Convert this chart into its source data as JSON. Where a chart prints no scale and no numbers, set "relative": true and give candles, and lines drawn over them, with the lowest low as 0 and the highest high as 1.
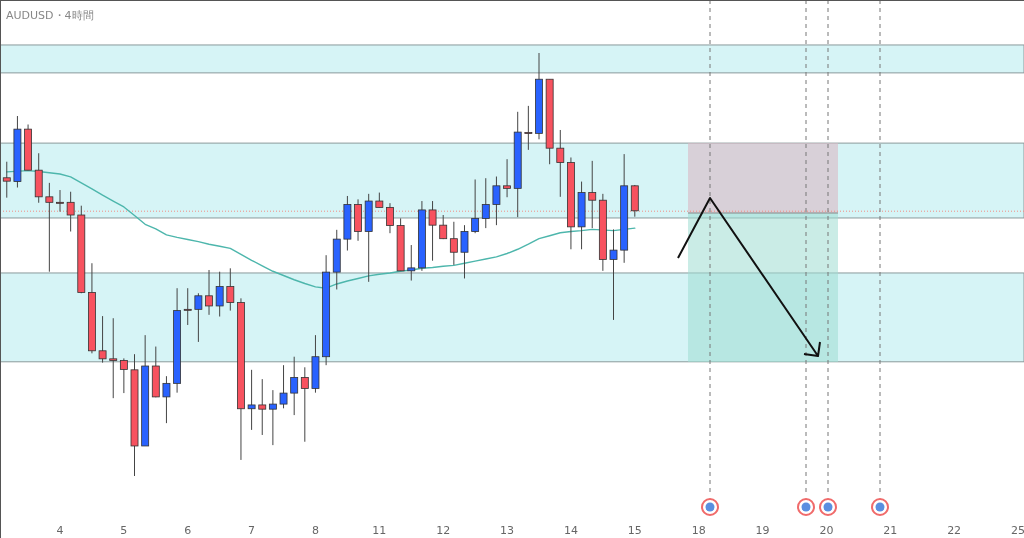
{
  "chart_data": {
    "type": "candlestick",
    "title": "AUDUSD・4時間",
    "relative": true,
    "categories": [
      null,
      null,
      null,
      null,
      null,
      "4",
      null,
      null,
      null,
      null,
      null,
      "5",
      null,
      null,
      null,
      null,
      null,
      "6",
      null,
      null,
      null,
      null,
      null,
      "7",
      null,
      null,
      null,
      null,
      null,
      "8",
      null,
      null,
      null,
      null,
      null,
      "11",
      null,
      null,
      null,
      null,
      null,
      "12",
      null,
      null,
      null,
      null,
      null,
      "13",
      null,
      null,
      null,
      null,
      null,
      "14",
      null,
      null,
      null,
      null,
      null,
      "15",
      null,
      null,
      null,
      null,
      null,
      "18",
      null,
      null,
      null,
      null,
      null,
      "19",
      null,
      null,
      null,
      null,
      null,
      "20",
      null,
      null,
      null,
      null,
      null,
      "21",
      null,
      null,
      null,
      null,
      null,
      "22",
      null,
      null,
      null,
      null,
      null,
      "25"
    ],
    "ohlc": [
      [
        0.705,
        0.743,
        0.658,
        0.697
      ],
      [
        0.696,
        0.851,
        0.682,
        0.82
      ],
      [
        0.82,
        0.831,
        0.723,
        0.723
      ],
      [
        0.723,
        0.763,
        0.646,
        0.66
      ],
      [
        0.66,
        0.693,
        0.483,
        0.647
      ],
      [
        0.647,
        0.676,
        0.625,
        0.646
      ],
      [
        0.647,
        0.672,
        0.578,
        0.617
      ],
      [
        0.617,
        0.639,
        0.432,
        0.434
      ],
      [
        0.434,
        0.503,
        0.29,
        0.296
      ],
      [
        0.296,
        0.378,
        0.268,
        0.277
      ],
      [
        0.277,
        0.373,
        0.184,
        0.273
      ],
      [
        0.273,
        0.278,
        0.196,
        0.252
      ],
      [
        0.251,
        0.288,
        0.0,
        0.071
      ],
      [
        0.071,
        0.333,
        0.071,
        0.26
      ],
      [
        0.26,
        0.306,
        0.186,
        0.187
      ],
      [
        0.187,
        0.236,
        0.125,
        0.219
      ],
      [
        0.219,
        0.444,
        0.197,
        0.391
      ],
      [
        0.394,
        0.444,
        0.357,
        0.393
      ],
      [
        0.394,
        0.432,
        0.317,
        0.426
      ],
      [
        0.426,
        0.487,
        0.381,
        0.402
      ],
      [
        0.402,
        0.483,
        0.377,
        0.448
      ],
      [
        0.448,
        0.491,
        0.391,
        0.41
      ],
      [
        0.41,
        0.42,
        0.038,
        0.159
      ],
      [
        0.159,
        0.251,
        0.109,
        0.168
      ],
      [
        0.168,
        0.229,
        0.097,
        0.158
      ],
      [
        0.158,
        0.203,
        0.073,
        0.17
      ],
      [
        0.17,
        0.262,
        0.16,
        0.196
      ],
      [
        0.196,
        0.282,
        0.144,
        0.233
      ],
      [
        0.233,
        0.257,
        0.081,
        0.207
      ],
      [
        0.207,
        0.333,
        0.197,
        0.282
      ],
      [
        0.282,
        0.522,
        0.262,
        0.482
      ],
      [
        0.482,
        0.582,
        0.441,
        0.56
      ],
      [
        0.56,
        0.662,
        0.533,
        0.642
      ],
      [
        0.642,
        0.654,
        0.556,
        0.578
      ],
      [
        0.578,
        0.667,
        0.459,
        0.65
      ],
      [
        0.65,
        0.67,
        0.635,
        0.635
      ],
      [
        0.635,
        0.645,
        0.574,
        0.592
      ],
      [
        0.592,
        0.609,
        0.485,
        0.485
      ],
      [
        0.485,
        0.546,
        0.462,
        0.492
      ],
      [
        0.492,
        0.65,
        0.485,
        0.629
      ],
      [
        0.629,
        0.65,
        0.509,
        0.593
      ],
      [
        0.593,
        0.617,
        0.56,
        0.561
      ],
      [
        0.561,
        0.601,
        0.499,
        0.529
      ],
      [
        0.529,
        0.593,
        0.467,
        0.578
      ],
      [
        0.578,
        0.701,
        0.574,
        0.609
      ],
      [
        0.609,
        0.704,
        0.586,
        0.642
      ],
      [
        0.642,
        0.708,
        0.593,
        0.686
      ],
      [
        0.686,
        0.749,
        0.659,
        0.68
      ],
      [
        0.68,
        0.861,
        0.612,
        0.813
      ],
      [
        0.812,
        0.875,
        0.771,
        0.811
      ],
      [
        0.81,
        1.0,
        0.796,
        0.938
      ],
      [
        0.938,
        0.938,
        0.737,
        0.775
      ],
      [
        0.775,
        0.818,
        0.66,
        0.741
      ],
      [
        0.741,
        0.753,
        0.536,
        0.589
      ],
      [
        0.589,
        0.696,
        0.536,
        0.67
      ],
      [
        0.67,
        0.745,
        0.586,
        0.652
      ],
      [
        0.652,
        0.667,
        0.485,
        0.512
      ],
      [
        0.512,
        0.583,
        0.369,
        0.534
      ],
      [
        0.534,
        0.761,
        0.504,
        0.686
      ],
      [
        0.686,
        0.688,
        0.613,
        0.627
      ],
      null,
      null,
      null,
      null,
      null,
      null,
      null,
      null,
      null,
      null,
      null,
      null,
      null,
      null,
      null,
      null,
      null,
      null,
      null,
      null,
      null,
      null,
      null,
      null,
      null,
      null,
      null,
      null,
      null,
      null,
      null,
      null,
      null,
      null,
      null,
      null
    ],
    "colors": [
      "#f7525f",
      "#2962ff",
      "#f7525f",
      "#f7525f",
      "#f7525f",
      "#f7525f",
      "#f7525f",
      "#f7525f",
      "#f7525f",
      "#f7525f",
      "#f7525f",
      "#f7525f",
      "#f7525f",
      "#2962ff",
      "#f7525f",
      "#2962ff",
      "#2962ff",
      "#f7525f",
      "#2962ff",
      "#f7525f",
      "#2962ff",
      "#f7525f",
      "#f7525f",
      "#2962ff",
      "#f7525f",
      "#2962ff",
      "#2962ff",
      "#2962ff",
      "#f7525f",
      "#2962ff",
      "#2962ff",
      "#2962ff",
      "#2962ff",
      "#f7525f",
      "#2962ff",
      "#f7525f",
      "#f7525f",
      "#f7525f",
      "#2962ff",
      "#2962ff",
      "#f7525f",
      "#f7525f",
      "#f7525f",
      "#2962ff",
      "#2962ff",
      "#2962ff",
      "#2962ff",
      "#f7525f",
      "#2962ff",
      "#f7525f",
      "#2962ff",
      "#f7525f",
      "#f7525f",
      "#f7525f",
      "#2962ff",
      "#f7525f",
      "#f7525f",
      "#2962ff",
      "#2962ff",
      "#f7525f",
      null,
      null,
      null,
      null,
      null,
      null,
      null,
      null,
      null,
      null,
      null,
      null,
      null,
      null,
      null,
      null,
      null,
      null,
      null,
      null,
      null,
      null,
      null,
      null,
      null,
      null,
      null,
      null,
      null,
      null,
      null,
      null,
      null,
      null,
      null,
      null
    ],
    "series": [
      {
        "type": "line",
        "color": "#4db6ac",
        "values": [
          0.719,
          null,
          0.722,
          0.72,
          0.717,
          0.714,
          0.707,
          0.693,
          0.679,
          0.664,
          0.65,
          0.636,
          0.616,
          0.595,
          0.584,
          0.57,
          0.564,
          0.559,
          0.554,
          0.548,
          0.543,
          0.538,
          0.524,
          0.51,
          0.497,
          0.484,
          0.474,
          0.464,
          0.455,
          0.447,
          0.444,
          0.454,
          0.461,
          0.467,
          0.473,
          0.477,
          0.48,
          0.484,
          0.487,
          0.491,
          0.493,
          0.496,
          0.498,
          0.503,
          0.508,
          0.513,
          0.518,
          0.526,
          0.536,
          0.548,
          0.561,
          0.568,
          0.575,
          0.578,
          0.58,
          0.583,
          null,
          0.58,
          0.583,
          0.586,
          null,
          null,
          null,
          null,
          null,
          null,
          null,
          null,
          null,
          null,
          null,
          null,
          null,
          null,
          null,
          null,
          null,
          null,
          null,
          null,
          null,
          null,
          null,
          null,
          null,
          null,
          null,
          null,
          null,
          null,
          null,
          null,
          null,
          null,
          null,
          null
        ]
      }
    ],
    "tick_labels": "x",
    "bands": [
      {
        "axis": "y",
        "from": 0.953,
        "to": 1.019,
        "color": "#d6f4f6"
      },
      {
        "axis": "y",
        "from": 0.61,
        "to": 0.787,
        "color": "#d6f4f6"
      },
      {
        "axis": "y",
        "from": 0.27,
        "to": 0.48,
        "color": "#d6f4f6"
      }
    ],
    "ref_lines": [
      {
        "axis": "y",
        "value": 0.626,
        "color": "#f28b82",
        "line_style": "dotted"
      }
    ]
  }
}
